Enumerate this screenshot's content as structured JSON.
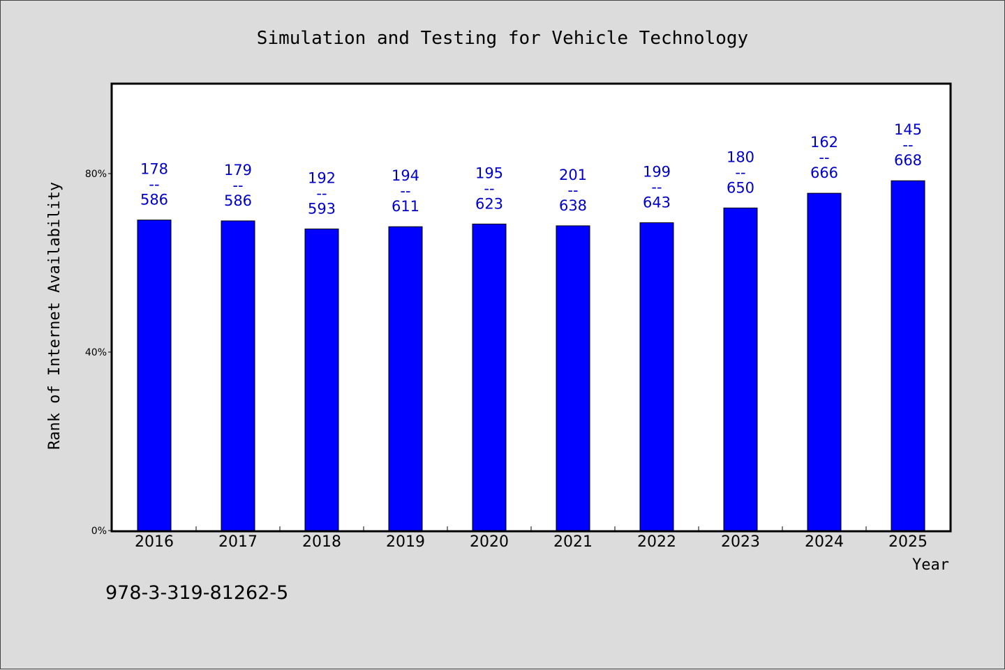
{
  "chart_data": {
    "type": "bar",
    "title": "Simulation and Testing for Vehicle Technology",
    "xlabel": "Year",
    "ylabel": "Rank of Internet Availability",
    "ylim": [
      0,
      100
    ],
    "yticks": [
      0,
      40,
      80
    ],
    "ytick_labels": [
      "0%",
      "40%",
      "80%"
    ],
    "grid": false,
    "legend": "none",
    "categories": [
      "2016",
      "2017",
      "2018",
      "2019",
      "2020",
      "2021",
      "2022",
      "2023",
      "2024",
      "2025"
    ],
    "series": [
      {
        "values": [
          69.6,
          69.4,
          67.6,
          68.1,
          68.7,
          68.3,
          69.0,
          72.3,
          75.6,
          78.4
        ],
        "color": "#0000ff",
        "labels": [
          {
            "rank": "178",
            "sep": "--",
            "total": "586"
          },
          {
            "rank": "179",
            "sep": "--",
            "total": "586"
          },
          {
            "rank": "192",
            "sep": "--",
            "total": "593"
          },
          {
            "rank": "194",
            "sep": "--",
            "total": "611"
          },
          {
            "rank": "195",
            "sep": "--",
            "total": "623"
          },
          {
            "rank": "201",
            "sep": "--",
            "total": "638"
          },
          {
            "rank": "199",
            "sep": "--",
            "total": "643"
          },
          {
            "rank": "180",
            "sep": "--",
            "total": "650"
          },
          {
            "rank": "162",
            "sep": "--",
            "total": "666"
          },
          {
            "rank": "145",
            "sep": "--",
            "total": "668"
          }
        ]
      }
    ],
    "label_color": "#0000c8",
    "background_color": "#dcdcdc",
    "plot_background": "#ffffff"
  },
  "footer": {
    "isbn": "978-3-319-81262-5"
  }
}
